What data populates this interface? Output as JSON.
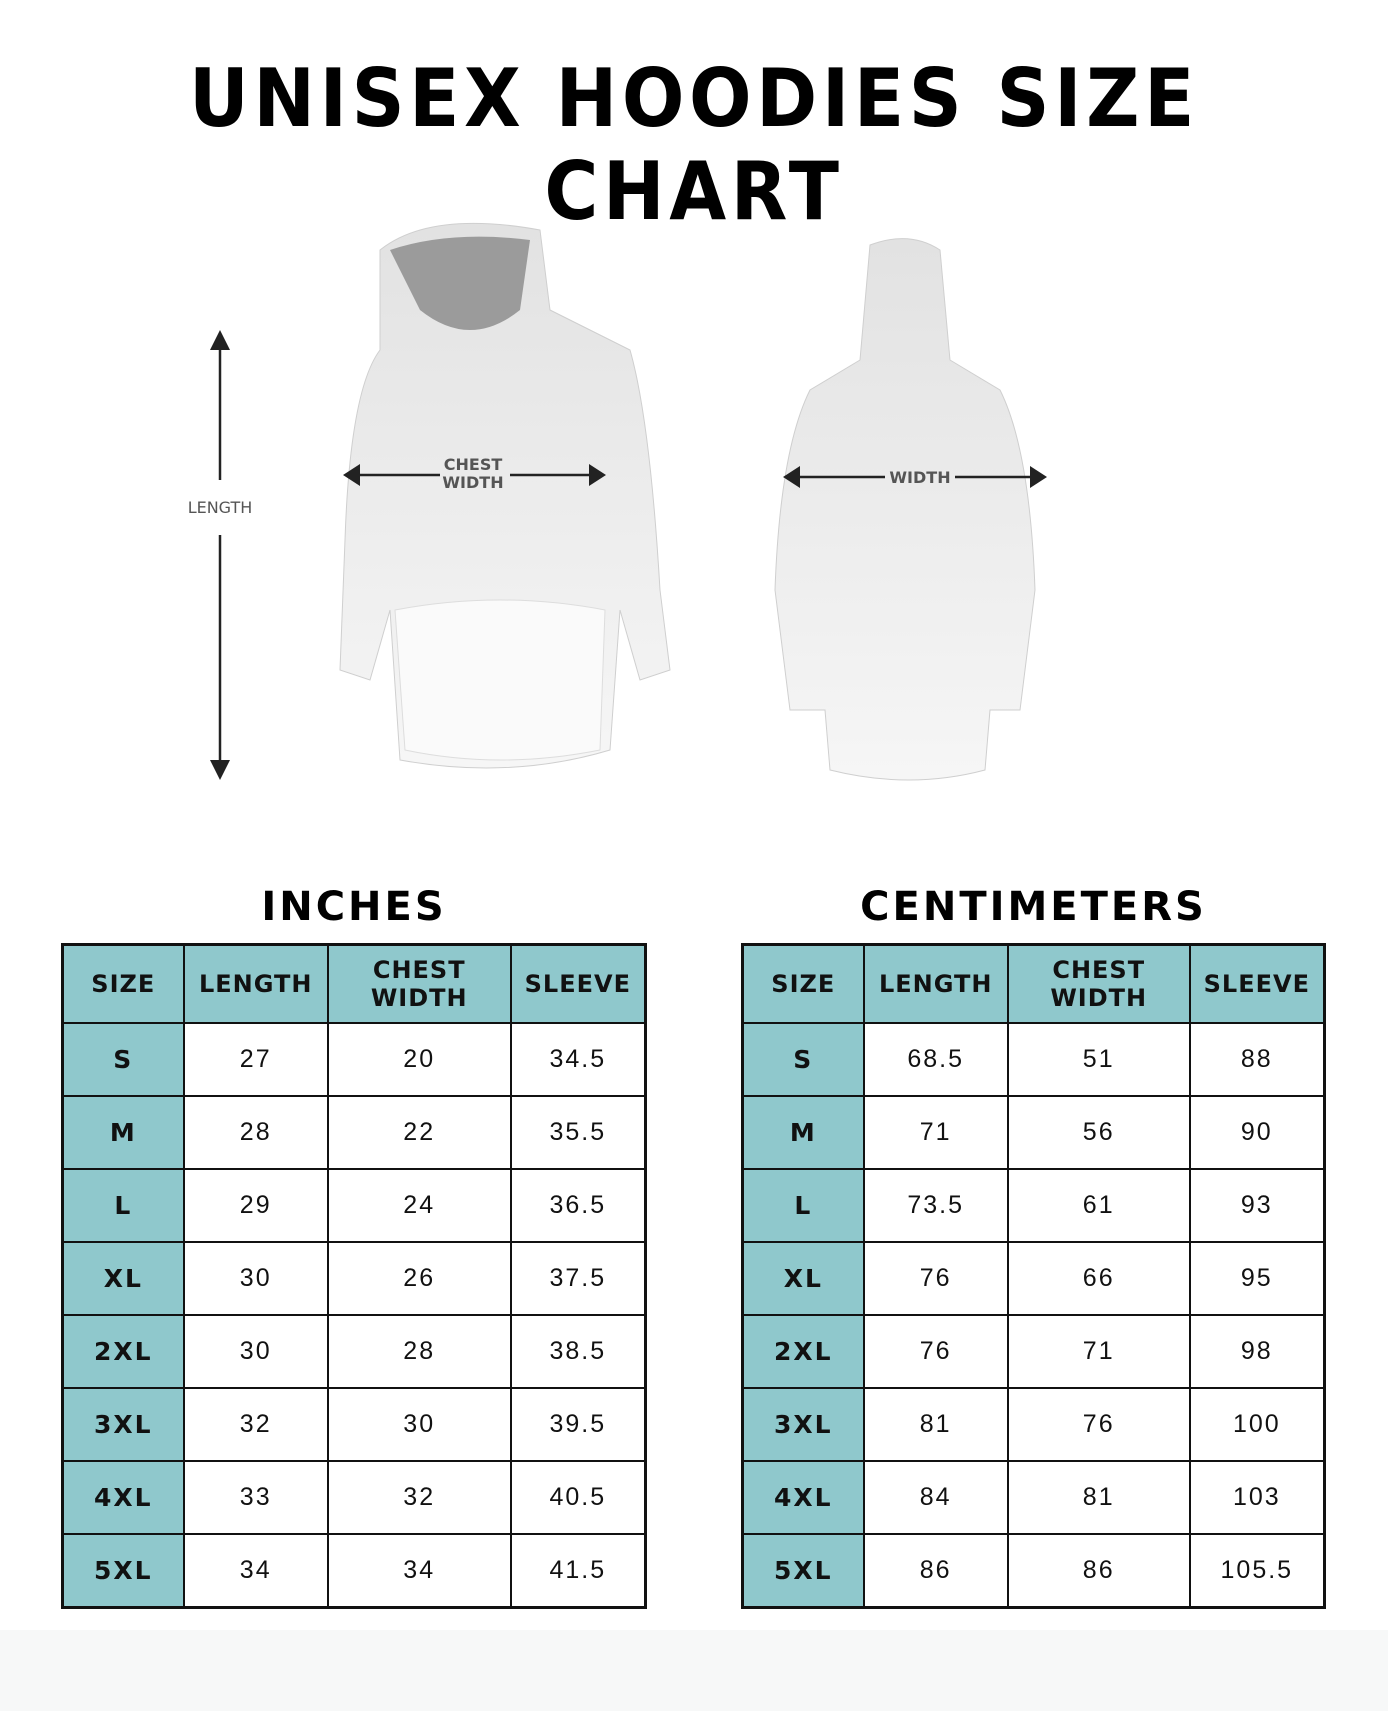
{
  "title": "UNISEX HOODIES SIZE CHART",
  "illustration": {
    "length_label": "LENGTH",
    "chest_label_line1": "CHEST",
    "chest_label_line2": "WIDTH",
    "width_label": "WIDTH"
  },
  "colors": {
    "header_bg": "#8fc8cc",
    "border": "#111111"
  },
  "tables": [
    {
      "title": "INCHES",
      "headers": [
        "SIZE",
        "LENGTH",
        "CHEST WIDTH",
        "SLEEVE"
      ],
      "rows": [
        [
          "S",
          "27",
          "20",
          "34.5"
        ],
        [
          "M",
          "28",
          "22",
          "35.5"
        ],
        [
          "L",
          "29",
          "24",
          "36.5"
        ],
        [
          "XL",
          "30",
          "26",
          "37.5"
        ],
        [
          "2XL",
          "30",
          "28",
          "38.5"
        ],
        [
          "3XL",
          "32",
          "30",
          "39.5"
        ],
        [
          "4XL",
          "33",
          "32",
          "40.5"
        ],
        [
          "5XL",
          "34",
          "34",
          "41.5"
        ]
      ]
    },
    {
      "title": "CENTIMETERS",
      "headers": [
        "SIZE",
        "LENGTH",
        "CHEST WIDTH",
        "SLEEVE"
      ],
      "rows": [
        [
          "S",
          "68.5",
          "51",
          "88"
        ],
        [
          "M",
          "71",
          "56",
          "90"
        ],
        [
          "L",
          "73.5",
          "61",
          "93"
        ],
        [
          "XL",
          "76",
          "66",
          "95"
        ],
        [
          "2XL",
          "76",
          "71",
          "98"
        ],
        [
          "3XL",
          "81",
          "76",
          "100"
        ],
        [
          "4XL",
          "84",
          "81",
          "103"
        ],
        [
          "5XL",
          "86",
          "86",
          "105.5"
        ]
      ]
    }
  ]
}
